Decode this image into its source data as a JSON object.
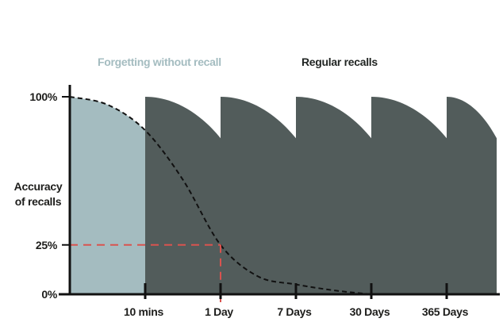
{
  "chart_data": {
    "type": "area",
    "title": "",
    "ylabel": [
      "Accuracy",
      "of recalls"
    ],
    "xlabel": "",
    "y_ticks": [
      {
        "value": 100,
        "label": "100%"
      },
      {
        "value": 25,
        "label": "25%"
      },
      {
        "value": 0,
        "label": "0%"
      }
    ],
    "x_ticks": [
      "10 mins",
      "1 Day",
      "7 Days",
      "30 Days",
      "365 Days"
    ],
    "ylim": [
      0,
      100
    ],
    "grid": false,
    "legend_position": "top",
    "series": [
      {
        "name": "Forgetting without recall",
        "color": "#a4bcc0",
        "points": [
          {
            "x": 0,
            "y": 100
          },
          {
            "x": 0.5,
            "y": 96
          },
          {
            "x": 1,
            "y": 83
          },
          {
            "x": 1.5,
            "y": 58
          },
          {
            "x": 2,
            "y": 25
          },
          {
            "x": 2.5,
            "y": 9
          },
          {
            "x": 3,
            "y": 5
          },
          {
            "x": 3.5,
            "y": 2
          },
          {
            "x": 4,
            "y": 0
          }
        ]
      },
      {
        "name": "Regular recalls",
        "color": "#525c5b",
        "recall_points_x": [
          1,
          2,
          3,
          4,
          5
        ],
        "decay_to_y": 79
      }
    ],
    "annotation": {
      "x": 2,
      "y": 25,
      "color": "#d9534f"
    }
  }
}
